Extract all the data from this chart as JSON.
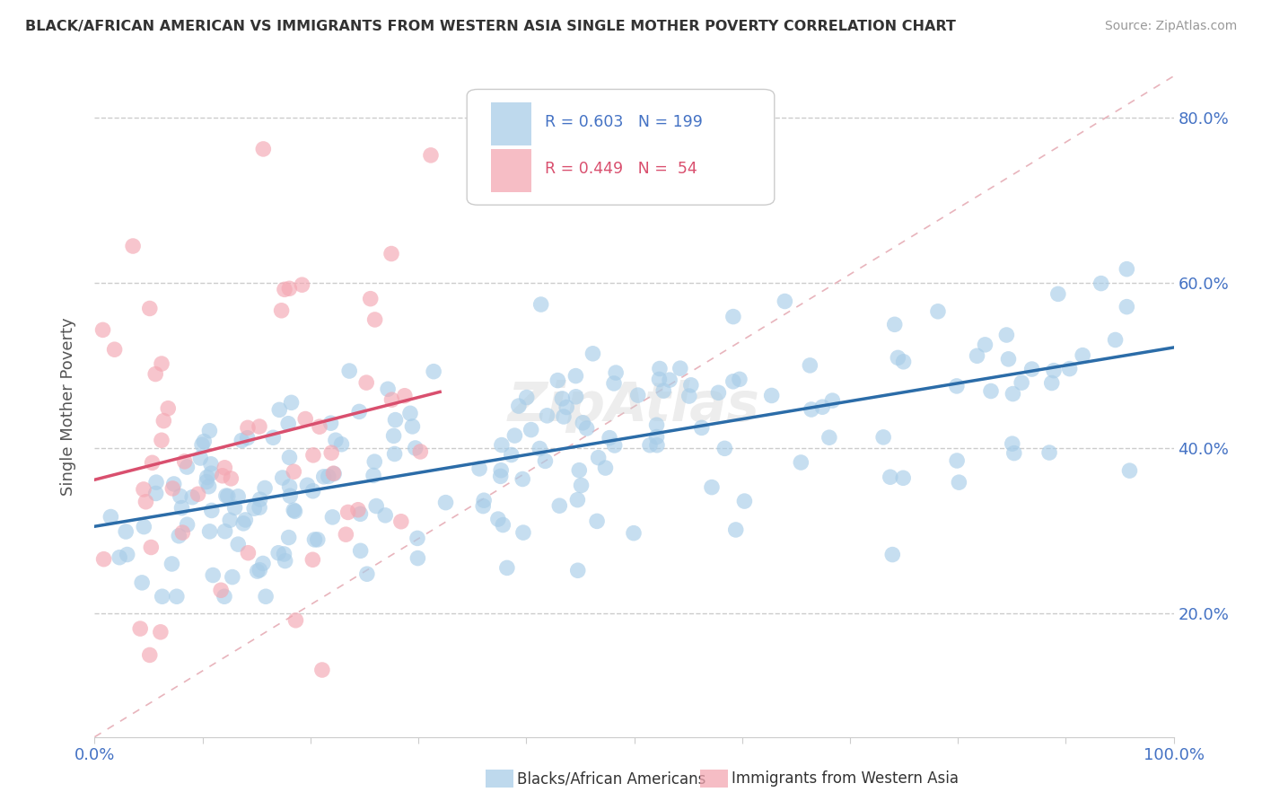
{
  "title": "BLACK/AFRICAN AMERICAN VS IMMIGRANTS FROM WESTERN ASIA SINGLE MOTHER POVERTY CORRELATION CHART",
  "source": "Source: ZipAtlas.com",
  "ylabel": "Single Mother Poverty",
  "xlim": [
    0,
    1
  ],
  "ylim": [
    0.05,
    0.85
  ],
  "yticks": [
    0.2,
    0.4,
    0.6,
    0.8
  ],
  "ytick_labels": [
    "20.0%",
    "40.0%",
    "60.0%",
    "80.0%"
  ],
  "xticks": [
    0.0,
    0.1,
    0.2,
    0.3,
    0.4,
    0.5,
    0.6,
    0.7,
    0.8,
    0.9,
    1.0
  ],
  "blue_R": 0.603,
  "blue_N": 199,
  "pink_R": 0.449,
  "pink_N": 54,
  "blue_color": "#a8cde8",
  "pink_color": "#f4a7b2",
  "blue_line_color": "#2b6ca8",
  "pink_line_color": "#d94f6e",
  "diagonal_color": "#e8b4bc",
  "background_color": "#ffffff",
  "legend_label_blue": "Blacks/African Americans",
  "legend_label_pink": "Immigrants from Western Asia",
  "blue_seed": 123,
  "pink_seed": 456
}
